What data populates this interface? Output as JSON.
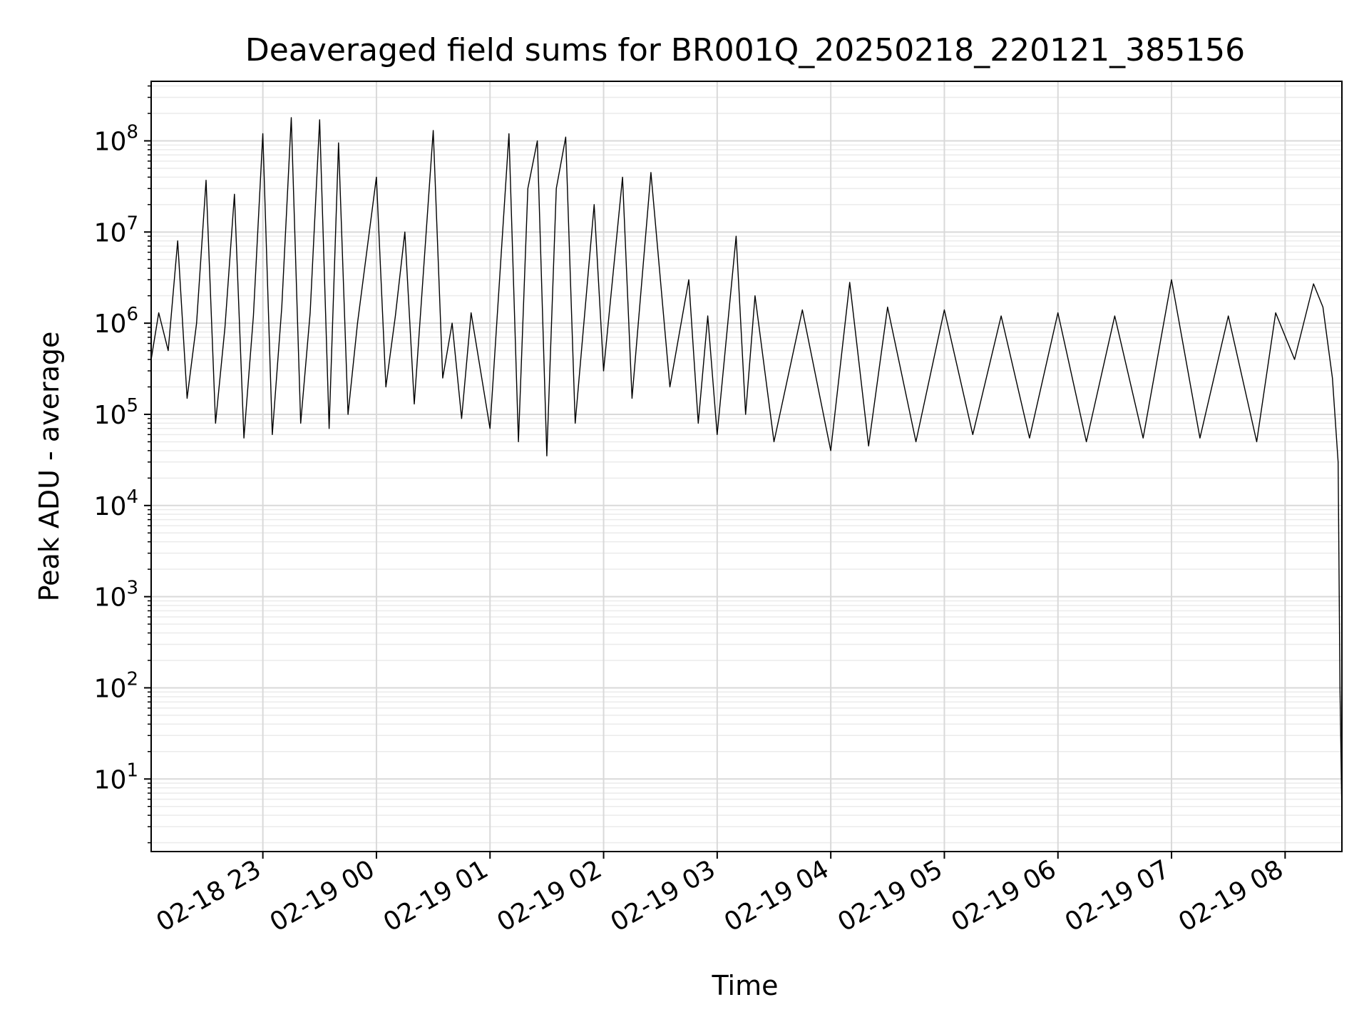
{
  "chart_data": {
    "type": "line",
    "title": "Deaveraged field sums for BR001Q_20250218_220121_385156",
    "xlabel": "Time",
    "ylabel": "Peak ADU - average",
    "y_scale": "log",
    "ylim": [
      1.6,
      450000000
    ],
    "xlim": [
      "2025-02-18 22:01",
      "2025-02-19 08:30"
    ],
    "grid": true,
    "x_ticks": [
      {
        "time": "2025-02-18 23:00",
        "label": "02-18 23"
      },
      {
        "time": "2025-02-19 00:00",
        "label": "02-19 00"
      },
      {
        "time": "2025-02-19 01:00",
        "label": "02-19 01"
      },
      {
        "time": "2025-02-19 02:00",
        "label": "02-19 02"
      },
      {
        "time": "2025-02-19 03:00",
        "label": "02-19 03"
      },
      {
        "time": "2025-02-19 04:00",
        "label": "02-19 04"
      },
      {
        "time": "2025-02-19 05:00",
        "label": "02-19 05"
      },
      {
        "time": "2025-02-19 06:00",
        "label": "02-19 06"
      },
      {
        "time": "2025-02-19 07:00",
        "label": "02-19 07"
      },
      {
        "time": "2025-02-19 08:00",
        "label": "02-19 08"
      }
    ],
    "y_ticks": [
      {
        "value": 10,
        "base": "10",
        "exp": "1"
      },
      {
        "value": 100,
        "base": "10",
        "exp": "2"
      },
      {
        "value": 1000,
        "base": "10",
        "exp": "3"
      },
      {
        "value": 10000,
        "base": "10",
        "exp": "4"
      },
      {
        "value": 100000,
        "base": "10",
        "exp": "5"
      },
      {
        "value": 1000000,
        "base": "10",
        "exp": "6"
      },
      {
        "value": 10000000,
        "base": "10",
        "exp": "7"
      },
      {
        "value": 100000000,
        "base": "10",
        "exp": "8"
      }
    ],
    "series": [
      {
        "color": "#000000",
        "points": [
          [
            "2025-02-18 22:01",
            400000
          ],
          [
            "2025-02-18 22:05",
            1300000
          ],
          [
            "2025-02-18 22:10",
            500000
          ],
          [
            "2025-02-18 22:15",
            8000000
          ],
          [
            "2025-02-18 22:20",
            150000
          ],
          [
            "2025-02-18 22:25",
            1000000
          ],
          [
            "2025-02-18 22:30",
            37000000
          ],
          [
            "2025-02-18 22:35",
            80000
          ],
          [
            "2025-02-18 22:40",
            900000
          ],
          [
            "2025-02-18 22:45",
            26000000
          ],
          [
            "2025-02-18 22:50",
            55000
          ],
          [
            "2025-02-18 22:55",
            1200000
          ],
          [
            "2025-02-18 23:00",
            120000000
          ],
          [
            "2025-02-18 23:05",
            60000
          ],
          [
            "2025-02-18 23:10",
            1500000
          ],
          [
            "2025-02-18 23:15",
            180000000
          ],
          [
            "2025-02-18 23:20",
            80000
          ],
          [
            "2025-02-18 23:25",
            1300000
          ],
          [
            "2025-02-18 23:30",
            170000000
          ],
          [
            "2025-02-18 23:35",
            70000
          ],
          [
            "2025-02-18 23:40",
            95000000
          ],
          [
            "2025-02-18 23:45",
            100000
          ],
          [
            "2025-02-18 23:50",
            1000000
          ],
          [
            "2025-02-19 00:00",
            40000000
          ],
          [
            "2025-02-19 00:05",
            200000
          ],
          [
            "2025-02-19 00:10",
            1200000
          ],
          [
            "2025-02-19 00:15",
            10000000
          ],
          [
            "2025-02-19 00:20",
            130000
          ],
          [
            "2025-02-19 00:30",
            130000000
          ],
          [
            "2025-02-19 00:35",
            250000
          ],
          [
            "2025-02-19 00:40",
            1000000
          ],
          [
            "2025-02-19 00:45",
            90000
          ],
          [
            "2025-02-19 00:50",
            1300000
          ],
          [
            "2025-02-19 01:00",
            70000
          ],
          [
            "2025-02-19 01:10",
            120000000
          ],
          [
            "2025-02-19 01:15",
            50000
          ],
          [
            "2025-02-19 01:20",
            30000000
          ],
          [
            "2025-02-19 01:25",
            100000000
          ],
          [
            "2025-02-19 01:30",
            35000
          ],
          [
            "2025-02-19 01:35",
            30000000
          ],
          [
            "2025-02-19 01:40",
            110000000
          ],
          [
            "2025-02-19 01:45",
            80000
          ],
          [
            "2025-02-19 01:55",
            20000000
          ],
          [
            "2025-02-19 02:00",
            300000
          ],
          [
            "2025-02-19 02:10",
            40000000
          ],
          [
            "2025-02-19 02:15",
            150000
          ],
          [
            "2025-02-19 02:25",
            45000000
          ],
          [
            "2025-02-19 02:35",
            200000
          ],
          [
            "2025-02-19 02:45",
            3000000
          ],
          [
            "2025-02-19 02:50",
            80000
          ],
          [
            "2025-02-19 02:55",
            1200000
          ],
          [
            "2025-02-19 03:00",
            60000
          ],
          [
            "2025-02-19 03:10",
            9000000
          ],
          [
            "2025-02-19 03:15",
            100000
          ],
          [
            "2025-02-19 03:20",
            2000000
          ],
          [
            "2025-02-19 03:30",
            50000
          ],
          [
            "2025-02-19 03:45",
            1400000
          ],
          [
            "2025-02-19 04:00",
            40000
          ],
          [
            "2025-02-19 04:10",
            2800000
          ],
          [
            "2025-02-19 04:20",
            45000
          ],
          [
            "2025-02-19 04:30",
            1500000
          ],
          [
            "2025-02-19 04:45",
            50000
          ],
          [
            "2025-02-19 05:00",
            1400000
          ],
          [
            "2025-02-19 05:15",
            60000
          ],
          [
            "2025-02-19 05:30",
            1200000
          ],
          [
            "2025-02-19 05:45",
            55000
          ],
          [
            "2025-02-19 06:00",
            1300000
          ],
          [
            "2025-02-19 06:15",
            50000
          ],
          [
            "2025-02-19 06:30",
            1200000
          ],
          [
            "2025-02-19 06:45",
            55000
          ],
          [
            "2025-02-19 07:00",
            3000000
          ],
          [
            "2025-02-19 07:15",
            55000
          ],
          [
            "2025-02-19 07:30",
            1200000
          ],
          [
            "2025-02-19 07:45",
            50000
          ],
          [
            "2025-02-19 07:55",
            1300000
          ],
          [
            "2025-02-19 08:05",
            400000
          ],
          [
            "2025-02-19 08:15",
            2700000
          ],
          [
            "2025-02-19 08:20",
            1500000
          ],
          [
            "2025-02-19 08:25",
            250000
          ],
          [
            "2025-02-19 08:28",
            30000
          ],
          [
            "2025-02-19 08:29",
            100
          ],
          [
            "2025-02-19 08:30",
            4
          ]
        ]
      }
    ]
  }
}
